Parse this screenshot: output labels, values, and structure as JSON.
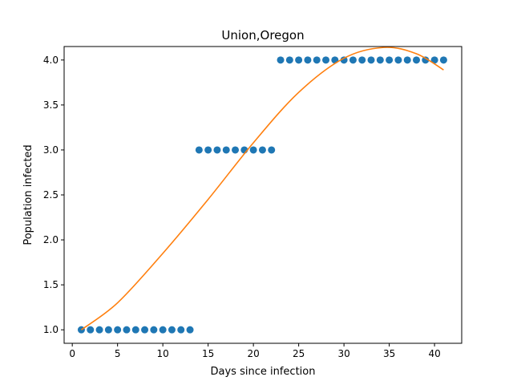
{
  "chart_data": {
    "type": "scatter",
    "title": "Union,Oregon",
    "xlabel": "Days since infection",
    "ylabel": "Population infected",
    "xlim": [
      -0.9,
      43.0
    ],
    "ylim": [
      0.85,
      4.15
    ],
    "xticks": [
      0,
      5,
      10,
      15,
      20,
      25,
      30,
      35,
      40
    ],
    "xtick_labels": [
      "0",
      "5",
      "10",
      "15",
      "20",
      "25",
      "30",
      "35",
      "40"
    ],
    "yticks": [
      1.0,
      1.5,
      2.0,
      2.5,
      3.0,
      3.5,
      4.0
    ],
    "ytick_labels": [
      "1.0",
      "1.5",
      "2.0",
      "2.5",
      "3.0",
      "3.5",
      "4.0"
    ],
    "grid": false,
    "colors": {
      "points": "#1f77b4",
      "fit": "#ff7f0e"
    },
    "series": [
      {
        "kind": "scatter",
        "x": [
          1,
          2,
          3,
          4,
          5,
          6,
          7,
          8,
          9,
          10,
          11,
          12,
          13,
          14,
          15,
          16,
          17,
          18,
          19,
          20,
          21,
          22,
          23,
          24,
          25,
          26,
          27,
          28,
          29,
          30,
          31,
          32,
          33,
          34,
          35,
          36,
          37,
          38,
          39,
          40,
          41
        ],
        "y": [
          1,
          1,
          1,
          1,
          1,
          1,
          1,
          1,
          1,
          1,
          1,
          1,
          1,
          3,
          3,
          3,
          3,
          3,
          3,
          3,
          3,
          3,
          4,
          4,
          4,
          4,
          4,
          4,
          4,
          4,
          4,
          4,
          4,
          4,
          4,
          4,
          4,
          4,
          4,
          4,
          4
        ]
      },
      {
        "kind": "line",
        "x": [
          1,
          5,
          10,
          15,
          20,
          25,
          30,
          34.4,
          38,
          41
        ],
        "y": [
          1.0,
          1.3,
          1.85,
          2.45,
          3.08,
          3.64,
          4.02,
          4.14,
          4.07,
          3.89
        ]
      }
    ]
  }
}
